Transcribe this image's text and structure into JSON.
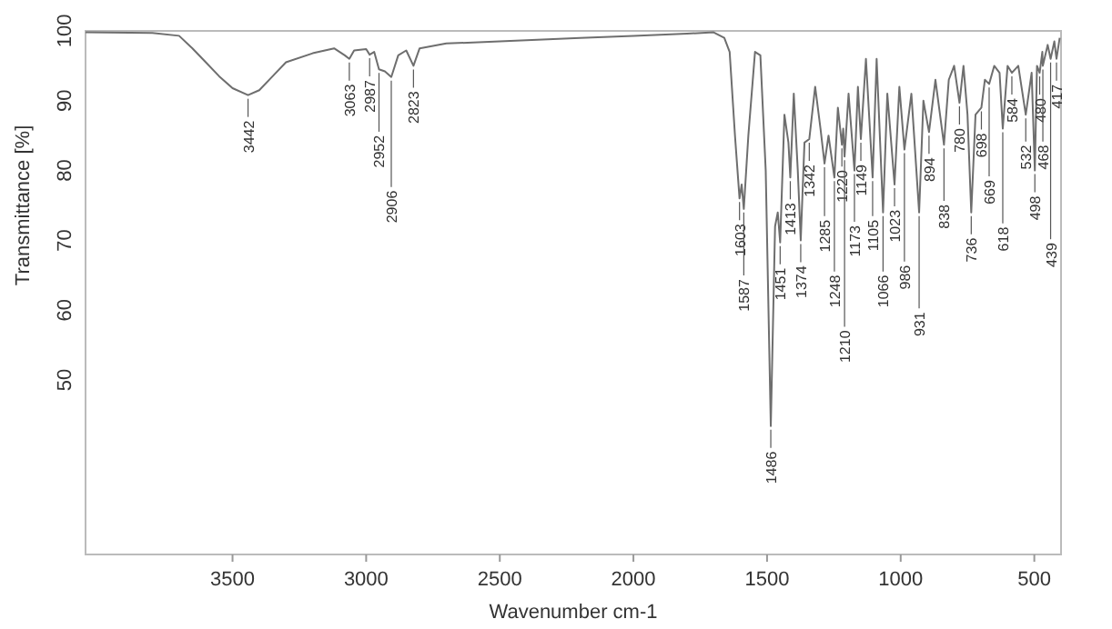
{
  "chart_data": {
    "type": "line",
    "xlabel": "Wavenumber cm-1",
    "ylabel": "Transmittance [%]",
    "xlim": [
      4050,
      400
    ],
    "ylim": [
      25,
      100
    ],
    "xticks": [
      3500,
      3000,
      2500,
      2000,
      1500,
      1000,
      500
    ],
    "yticks": [
      50,
      60,
      70,
      80,
      90,
      100
    ],
    "grid": false,
    "marker": "none",
    "line_style": "solid",
    "series": [
      {
        "color": "#6e6e6e",
        "x": [
          4050,
          3800,
          3700,
          3650,
          3600,
          3550,
          3500,
          3442,
          3400,
          3350,
          3300,
          3200,
          3120,
          3080,
          3063,
          3045,
          3000,
          2987,
          2970,
          2952,
          2930,
          2906,
          2880,
          2850,
          2823,
          2800,
          2700,
          2500,
          2200,
          2000,
          1800,
          1700,
          1660,
          1640,
          1620,
          1603,
          1595,
          1587,
          1570,
          1545,
          1525,
          1505,
          1486,
          1470,
          1460,
          1451,
          1435,
          1420,
          1413,
          1400,
          1385,
          1374,
          1360,
          1342,
          1320,
          1300,
          1285,
          1270,
          1248,
          1235,
          1220,
          1215,
          1210,
          1195,
          1173,
          1160,
          1149,
          1130,
          1105,
          1090,
          1066,
          1050,
          1023,
          1005,
          986,
          960,
          931,
          915,
          894,
          870,
          838,
          820,
          800,
          780,
          765,
          750,
          736,
          720,
          698,
          685,
          669,
          650,
          630,
          618,
          600,
          584,
          560,
          532,
          510,
          498,
          490,
          480,
          470,
          468,
          450,
          439,
          425,
          417,
          405
        ],
        "values": [
          99.8,
          99.7,
          99.3,
          97.5,
          95.5,
          93.5,
          91.8,
          90.8,
          91.5,
          93.5,
          95.5,
          96.8,
          97.5,
          96.5,
          96,
          97.2,
          97.4,
          96.6,
          97,
          94.5,
          94.2,
          93.4,
          96.5,
          97.2,
          95,
          97.5,
          98.2,
          98.5,
          99,
          99.3,
          99.6,
          99.8,
          99,
          97,
          85,
          76,
          78,
          74.5,
          85,
          97,
          96.5,
          80,
          43.4,
          72,
          74,
          69.7,
          88,
          84,
          79,
          91,
          80,
          70,
          84,
          84.5,
          92,
          86,
          81,
          85,
          79,
          89,
          83.7,
          86,
          82,
          91,
          80,
          92,
          84.5,
          96,
          79,
          96,
          74,
          91,
          78,
          92,
          83,
          91,
          74,
          90,
          85.5,
          93,
          83.7,
          93,
          95,
          89.7,
          95,
          88,
          74,
          88,
          89,
          93,
          92.4,
          95,
          94,
          86,
          95,
          94,
          95,
          88,
          94,
          80,
          95,
          94,
          97,
          95,
          98,
          96,
          98.5,
          96,
          99
        ]
      }
    ],
    "annotations": [
      {
        "text": "3442",
        "x": 3442,
        "y": 90.8
      },
      {
        "text": "3063",
        "x": 3063,
        "y": 96
      },
      {
        "text": "2987",
        "x": 2987,
        "y": 96.6
      },
      {
        "text": "2952",
        "x": 2952,
        "y": 94.5
      },
      {
        "text": "2906",
        "x": 2906,
        "y": 93.4
      },
      {
        "text": "2823",
        "x": 2823,
        "y": 95
      },
      {
        "text": "1603",
        "x": 1603,
        "y": 76
      },
      {
        "text": "1587",
        "x": 1587,
        "y": 74.5
      },
      {
        "text": "1486",
        "x": 1486,
        "y": 43.4
      },
      {
        "text": "1451",
        "x": 1451,
        "y": 69.7
      },
      {
        "text": "1413",
        "x": 1413,
        "y": 79
      },
      {
        "text": "1374",
        "x": 1374,
        "y": 70
      },
      {
        "text": "1342",
        "x": 1342,
        "y": 84.5
      },
      {
        "text": "1285",
        "x": 1285,
        "y": 81
      },
      {
        "text": "1248",
        "x": 1248,
        "y": 79
      },
      {
        "text": "1220",
        "x": 1220,
        "y": 83.7
      },
      {
        "text": "1210",
        "x": 1210,
        "y": 82
      },
      {
        "text": "1173",
        "x": 1173,
        "y": 80
      },
      {
        "text": "1149",
        "x": 1149,
        "y": 84.5
      },
      {
        "text": "1105",
        "x": 1105,
        "y": 79
      },
      {
        "text": "1066",
        "x": 1066,
        "y": 74
      },
      {
        "text": "1023",
        "x": 1023,
        "y": 78
      },
      {
        "text": "986",
        "x": 986,
        "y": 83
      },
      {
        "text": "931",
        "x": 931,
        "y": 74
      },
      {
        "text": "894",
        "x": 894,
        "y": 85.5
      },
      {
        "text": "838",
        "x": 838,
        "y": 83.7
      },
      {
        "text": "780",
        "x": 780,
        "y": 89.7
      },
      {
        "text": "736",
        "x": 736,
        "y": 74
      },
      {
        "text": "698",
        "x": 698,
        "y": 89
      },
      {
        "text": "669",
        "x": 669,
        "y": 92.4
      },
      {
        "text": "618",
        "x": 618,
        "y": 86
      },
      {
        "text": "584",
        "x": 584,
        "y": 94
      },
      {
        "text": "532",
        "x": 532,
        "y": 88
      },
      {
        "text": "498",
        "x": 498,
        "y": 80
      },
      {
        "text": "480",
        "x": 480,
        "y": 94
      },
      {
        "text": "468",
        "x": 468,
        "y": 95
      },
      {
        "text": "439",
        "x": 439,
        "y": 96
      },
      {
        "text": "417",
        "x": 417,
        "y": 96
      }
    ]
  }
}
